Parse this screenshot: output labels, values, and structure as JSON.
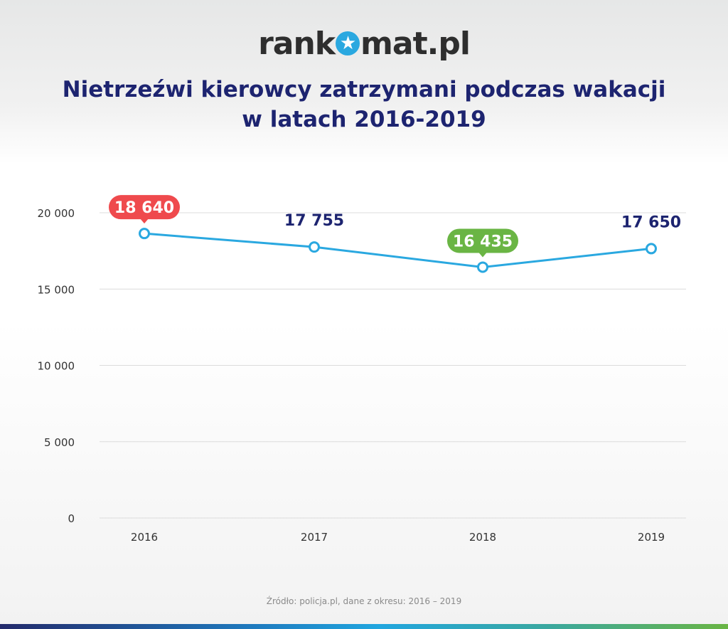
{
  "logo": {
    "text_before": "rank",
    "text_after": "mat.pl",
    "icon": "star-icon"
  },
  "title_line1": "Nietrzeźwi kierowcy zatrzymani podczas wakacji",
  "title_line2": "w latach 2016-2019",
  "source": "Źródło: policja.pl, dane z okresu: 2016 – 2019",
  "colors": {
    "line": "#2aa8e0",
    "max_label": "#ef4a4d",
    "min_label": "#6ab544",
    "value_text": "#1d2470",
    "title": "#1d2470"
  },
  "chart_data": {
    "type": "line",
    "categories": [
      "2016",
      "2017",
      "2018",
      "2019"
    ],
    "values": [
      18640,
      17755,
      16435,
      17650
    ],
    "data_labels": [
      "18 640",
      "17 755",
      "16 435",
      "17 650"
    ],
    "highlight": {
      "max_index": 0,
      "min_index": 2
    },
    "ylim": [
      0,
      20000
    ],
    "yticks": [
      0,
      5000,
      10000,
      15000,
      20000
    ],
    "ytick_labels": [
      "0",
      "5 000",
      "10 000",
      "15 000",
      "20 000"
    ],
    "grid": true
  }
}
